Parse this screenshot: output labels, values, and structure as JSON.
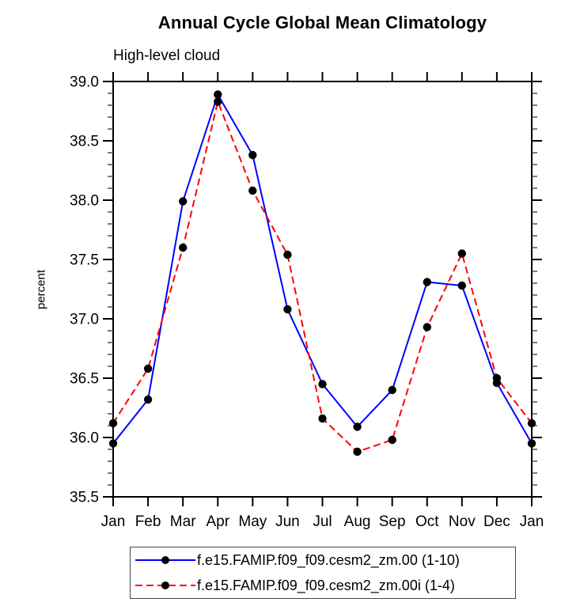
{
  "title": "Annual Cycle Global Mean Climatology",
  "subtitle": "High-level cloud",
  "chart_data": {
    "type": "line",
    "title": "Annual Cycle Global Mean Climatology",
    "subtitle": "High-level cloud",
    "ylabel": "percent",
    "xlabel": "",
    "categories": [
      "Jan",
      "Feb",
      "Mar",
      "Apr",
      "May",
      "Jun",
      "Jul",
      "Aug",
      "Sep",
      "Oct",
      "Nov",
      "Dec",
      "Jan"
    ],
    "series": [
      {
        "name": "f.e15.FAMIP.f09_f09.cesm2_zm.00 (1-10)",
        "color": "#0000ff",
        "line_style": "solid",
        "marker": "filled-circle",
        "marker_color": "#000000",
        "values": [
          35.95,
          36.32,
          37.99,
          38.89,
          38.38,
          37.08,
          36.45,
          36.09,
          36.4,
          37.31,
          37.28,
          36.46,
          35.95
        ]
      },
      {
        "name": "f.e15.FAMIP.f09_f09.cesm2_zm.00i (1-4)",
        "color": "#ff0000",
        "line_style": "dashed",
        "marker": "filled-circle",
        "marker_color": "#000000",
        "values": [
          36.12,
          36.58,
          37.6,
          38.83,
          38.08,
          37.54,
          36.16,
          35.88,
          35.98,
          36.93,
          37.55,
          36.5,
          36.12
        ]
      }
    ],
    "ylim": [
      35.5,
      39.0
    ],
    "ytick_major": 0.5,
    "ytick_minor": 0.1,
    "grid": "off",
    "frame": "box",
    "tick_direction": "out",
    "legend_position": "bottom",
    "axis_color": "#000000"
  }
}
